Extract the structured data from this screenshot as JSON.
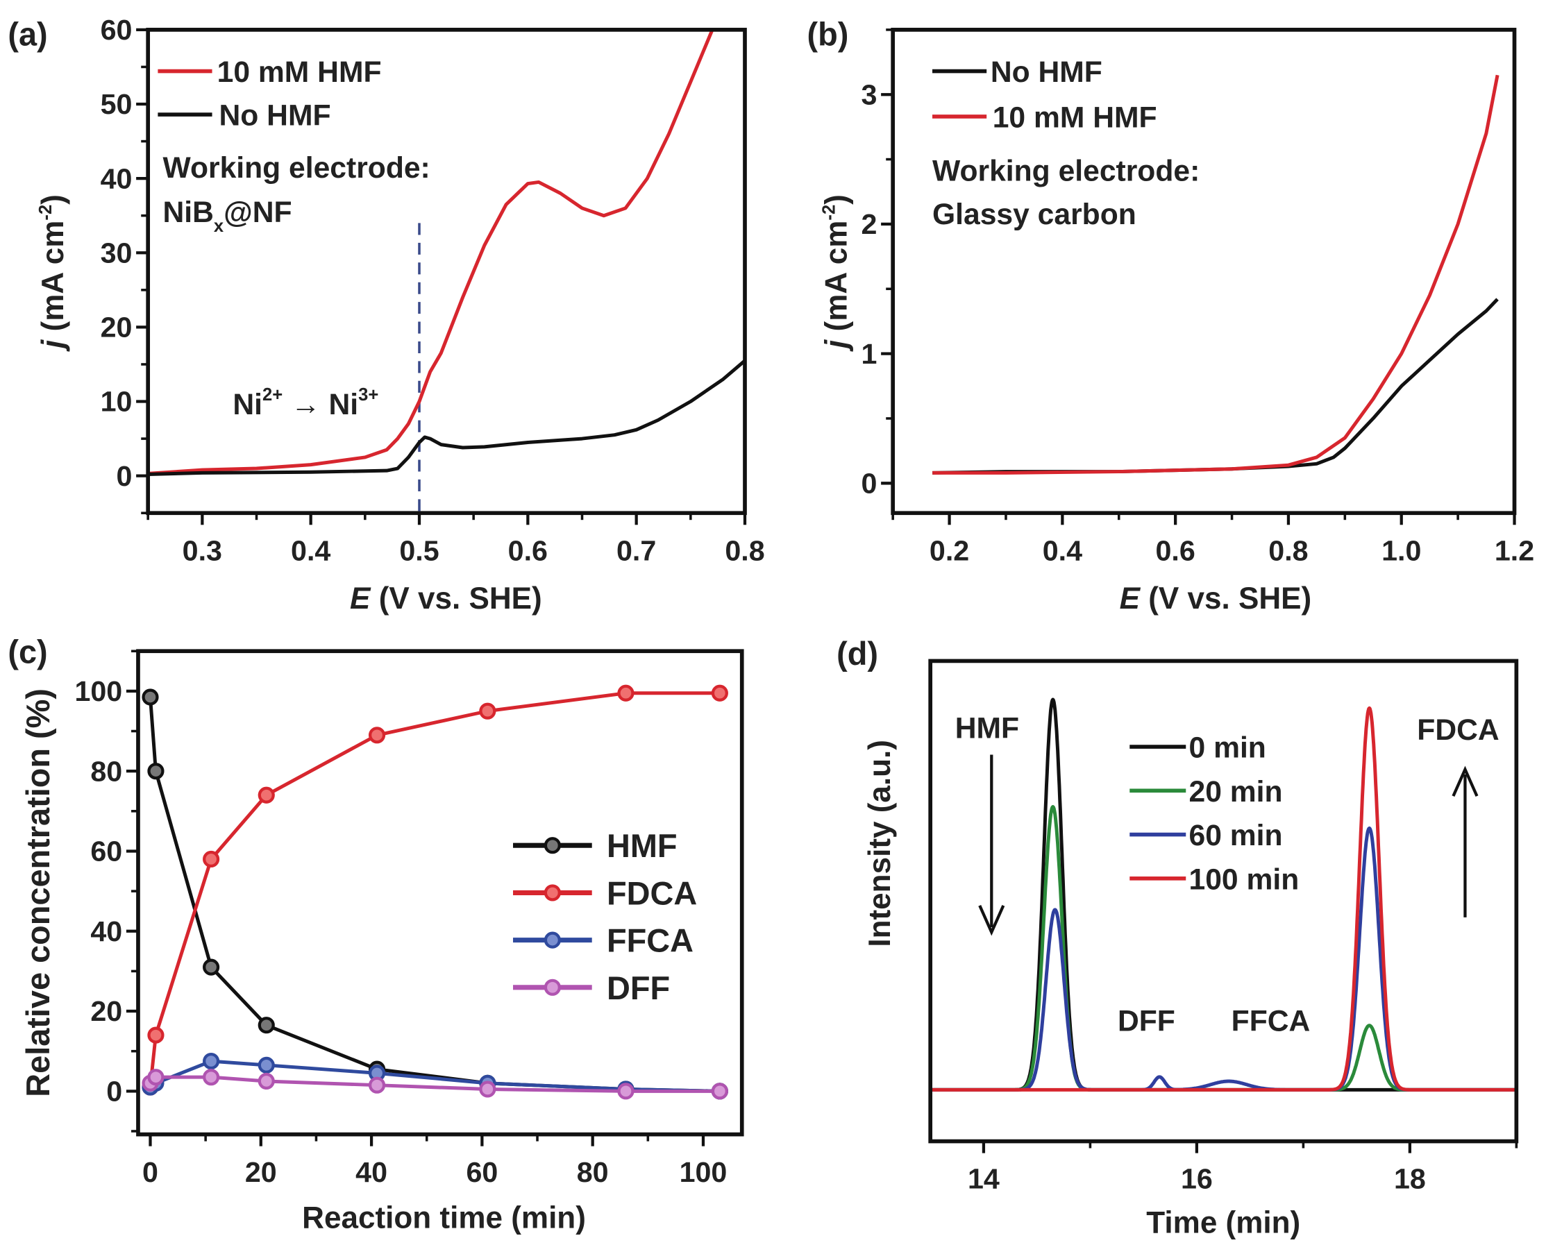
{
  "chart_data": [
    {
      "type": "line",
      "panel": "(a)",
      "xlabel_var": "E",
      "xlabel": " (V vs. SHE)",
      "ylabel_var": "j",
      "ylabel": " (mA cm",
      "ylabel_sup": "-2",
      "ylabel_end": ")",
      "xlim": [
        0.25,
        0.8
      ],
      "ylim": [
        -5,
        60
      ],
      "xticks": [
        "0.3",
        "0.4",
        "0.5",
        "0.6",
        "0.7",
        "0.8"
      ],
      "yticks": [
        "0",
        "10",
        "20",
        "30",
        "40",
        "50",
        "60"
      ],
      "minor_x": 0.05,
      "minor_y": 5,
      "series": [
        {
          "name": "10 mM HMF",
          "color": "#d7262e",
          "points": [
            [
              0.25,
              0.3
            ],
            [
              0.3,
              0.8
            ],
            [
              0.35,
              1.0
            ],
            [
              0.4,
              1.5
            ],
            [
              0.45,
              2.5
            ],
            [
              0.47,
              3.5
            ],
            [
              0.48,
              5
            ],
            [
              0.49,
              7
            ],
            [
              0.5,
              10
            ],
            [
              0.51,
              14
            ],
            [
              0.52,
              16.5
            ],
            [
              0.54,
              24
            ],
            [
              0.56,
              31
            ],
            [
              0.58,
              36.5
            ],
            [
              0.6,
              39.3
            ],
            [
              0.61,
              39.5
            ],
            [
              0.63,
              38
            ],
            [
              0.65,
              36
            ],
            [
              0.67,
              35
            ],
            [
              0.69,
              36
            ],
            [
              0.71,
              40
            ],
            [
              0.73,
              46
            ],
            [
              0.75,
              53
            ],
            [
              0.77,
              60
            ]
          ]
        },
        {
          "name": "No HMF",
          "color": "#111111",
          "points": [
            [
              0.25,
              0.2
            ],
            [
              0.3,
              0.4
            ],
            [
              0.4,
              0.5
            ],
            [
              0.47,
              0.7
            ],
            [
              0.48,
              1
            ],
            [
              0.49,
              2.5
            ],
            [
              0.5,
              4.5
            ],
            [
              0.505,
              5.2
            ],
            [
              0.51,
              5
            ],
            [
              0.52,
              4.2
            ],
            [
              0.54,
              3.8
            ],
            [
              0.56,
              3.9
            ],
            [
              0.6,
              4.5
            ],
            [
              0.65,
              5
            ],
            [
              0.68,
              5.5
            ],
            [
              0.7,
              6.2
            ],
            [
              0.72,
              7.5
            ],
            [
              0.75,
              10
            ],
            [
              0.78,
              13
            ],
            [
              0.8,
              15.5
            ]
          ]
        }
      ],
      "marker_line": {
        "x": 0.5,
        "color": "#3a4a8a"
      },
      "electrode_label": "Working electrode:",
      "electrode_main": "NiB",
      "electrode_sub": "x",
      "electrode_end": "@NF",
      "transition": {
        "a": "Ni",
        "a_sup": "2+",
        "arrow": " → Ni",
        "b_sup": "3+"
      }
    },
    {
      "type": "line",
      "panel": "(b)",
      "xlabel_var": "E",
      "xlabel": " (V vs. SHE)",
      "ylabel_var": "j",
      "ylabel": " (mA cm",
      "ylabel_sup": "-2",
      "ylabel_end": ")",
      "xlim": [
        0.1,
        1.2
      ],
      "ylim": [
        -0.23,
        3.5
      ],
      "xticks": [
        "0.2",
        "0.4",
        "0.6",
        "0.8",
        "1.0",
        "1.2"
      ],
      "yticks": [
        "0",
        "1",
        "2",
        "3"
      ],
      "minor_x": 0.1,
      "minor_y": 0.5,
      "series": [
        {
          "name": "No HMF",
          "color": "#111111",
          "points": [
            [
              0.17,
              0.08
            ],
            [
              0.3,
              0.09
            ],
            [
              0.5,
              0.09
            ],
            [
              0.7,
              0.11
            ],
            [
              0.8,
              0.13
            ],
            [
              0.85,
              0.15
            ],
            [
              0.88,
              0.2
            ],
            [
              0.9,
              0.27
            ],
            [
              0.95,
              0.5
            ],
            [
              1.0,
              0.75
            ],
            [
              1.05,
              0.95
            ],
            [
              1.1,
              1.15
            ],
            [
              1.15,
              1.33
            ],
            [
              1.17,
              1.42
            ]
          ]
        },
        {
          "name": "10 mM HMF",
          "color": "#d7262e",
          "points": [
            [
              0.17,
              0.08
            ],
            [
              0.3,
              0.08
            ],
            [
              0.5,
              0.09
            ],
            [
              0.7,
              0.11
            ],
            [
              0.8,
              0.14
            ],
            [
              0.85,
              0.2
            ],
            [
              0.9,
              0.35
            ],
            [
              0.95,
              0.65
            ],
            [
              1.0,
              1.0
            ],
            [
              1.05,
              1.45
            ],
            [
              1.1,
              2.0
            ],
            [
              1.15,
              2.7
            ],
            [
              1.17,
              3.15
            ]
          ]
        }
      ],
      "electrode_label": "Working electrode:",
      "electrode_main": "Glassy carbon"
    },
    {
      "type": "line",
      "panel": "(c)",
      "xlabel": "Reaction time (min)",
      "ylabel": "Relative concentration (%)",
      "xlim": [
        -2.2,
        107
      ],
      "ylim": [
        -10.8,
        110
      ],
      "xticks": [
        "0",
        "20",
        "40",
        "60",
        "80",
        "100"
      ],
      "yticks": [
        "0",
        "20",
        "40",
        "60",
        "80",
        "100"
      ],
      "minor_x": 10,
      "minor_y": 10,
      "x": [
        0,
        1,
        11,
        21,
        41,
        61,
        86,
        103
      ],
      "series": [
        {
          "name": "HMF",
          "color": "#111111",
          "fill": "#777777",
          "values": [
            98.5,
            80,
            31,
            16.5,
            5.5,
            2,
            0.5,
            0
          ]
        },
        {
          "name": "FDCA",
          "color": "#d7262e",
          "fill": "#f07070",
          "values": [
            1,
            14,
            58,
            74,
            89,
            95,
            99.5,
            99.5
          ]
        },
        {
          "name": "FFCA",
          "color": "#2f4a9e",
          "fill": "#7a8fd0",
          "values": [
            1,
            2,
            7.5,
            6.5,
            4.5,
            2,
            0.5,
            0
          ]
        },
        {
          "name": "DFF",
          "color": "#b054b0",
          "fill": "#d89ad8",
          "values": [
            2,
            3.5,
            3.5,
            2.5,
            1.5,
            0.5,
            0,
            0
          ]
        }
      ]
    },
    {
      "type": "line",
      "panel": "(d)",
      "xlabel": "Time (min)",
      "ylabel": "Intensity (a.u.)",
      "xlim": [
        13.5,
        19
      ],
      "ylim": [
        -0.12,
        1
      ],
      "xticks": [
        "14",
        "16",
        "18"
      ],
      "minor_x": 1,
      "series": [
        {
          "name": "0 min",
          "color": "#111111",
          "peaks": [
            {
              "center": 14.65,
              "height": 0.91,
              "width": 0.085
            }
          ]
        },
        {
          "name": "20 min",
          "color": "#2a8a3a",
          "peaks": [
            {
              "center": 14.65,
              "height": 0.66,
              "width": 0.085
            },
            {
              "center": 17.62,
              "height": 0.15,
              "width": 0.09
            }
          ]
        },
        {
          "name": "60 min",
          "color": "#2f3f9e",
          "peaks": [
            {
              "center": 14.67,
              "height": 0.42,
              "width": 0.085
            },
            {
              "center": 15.65,
              "height": 0.03,
              "width": 0.05
            },
            {
              "center": 16.3,
              "height": 0.02,
              "width": 0.17
            },
            {
              "center": 17.62,
              "height": 0.61,
              "width": 0.09
            }
          ]
        },
        {
          "name": "100 min",
          "color": "#d7262e",
          "peaks": [
            {
              "center": 17.62,
              "height": 0.89,
              "width": 0.09
            }
          ]
        }
      ],
      "annotations": {
        "hmf": "HMF",
        "fdca": "FDCA",
        "dff": "DFF",
        "ffca": "FFCA"
      }
    }
  ]
}
